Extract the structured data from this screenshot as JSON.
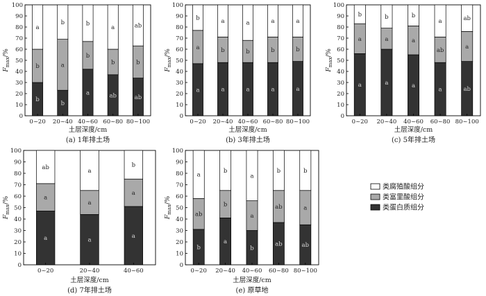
{
  "legend": [
    {
      "key": "humic",
      "label": "类腐殖酸组分",
      "color": "#ffffff"
    },
    {
      "key": "fulvic",
      "label": "类富里酸组分",
      "color": "#a9a9a9"
    },
    {
      "key": "protein",
      "label": "类蛋白质组分",
      "color": "#333333"
    }
  ],
  "chart_data": [
    {
      "type": "bar",
      "stacked": true,
      "caption": "(a)  1年排土场",
      "xlabel": "土层深度/cm",
      "ylabel_main": "F",
      "ylabel_sub": "max",
      "ylabel_unit": "/%",
      "ylim": [
        0,
        100
      ],
      "yticks": [
        0,
        10,
        20,
        30,
        40,
        50,
        60,
        70,
        80,
        90,
        100
      ],
      "categories": [
        "0~20",
        "20~40",
        "40~60",
        "60~80",
        "80~100"
      ],
      "series": [
        {
          "key": "protein",
          "values": [
            30,
            23,
            42,
            37,
            34
          ],
          "labels": [
            "b",
            "b",
            "a",
            "ab",
            "ab"
          ]
        },
        {
          "key": "fulvic",
          "values": [
            30,
            46,
            25,
            23,
            29
          ],
          "labels": [
            "b",
            "a",
            "b",
            "b",
            "b"
          ]
        },
        {
          "key": "humic",
          "values": [
            40,
            31,
            33,
            40,
            37
          ],
          "labels": [
            "a",
            "b",
            "b",
            "a",
            "ab"
          ]
        }
      ]
    },
    {
      "type": "bar",
      "stacked": true,
      "caption": "(b)  3年排土场",
      "xlabel": "土层深度/cm",
      "ylabel_main": "F",
      "ylabel_sub": "max",
      "ylabel_unit": "/%",
      "ylim": [
        0,
        100
      ],
      "yticks": [
        0,
        10,
        20,
        30,
        40,
        50,
        60,
        70,
        80,
        90,
        100
      ],
      "categories": [
        "0~20",
        "20~40",
        "40~60",
        "60~80",
        "80~100"
      ],
      "series": [
        {
          "key": "protein",
          "values": [
            47,
            48,
            48,
            48,
            49
          ],
          "labels": [
            "a",
            "a",
            "a",
            "a",
            "a"
          ]
        },
        {
          "key": "fulvic",
          "values": [
            30,
            23,
            20,
            23,
            22
          ],
          "labels": [
            "a",
            "b",
            "b",
            "b",
            "b"
          ]
        },
        {
          "key": "humic",
          "values": [
            23,
            29,
            32,
            29,
            29
          ],
          "labels": [
            "b",
            "a",
            "a",
            "a",
            "a"
          ]
        }
      ]
    },
    {
      "type": "bar",
      "stacked": true,
      "caption": "(c)  5年排土场",
      "xlabel": "土层深度/cm",
      "ylabel_main": "F",
      "ylabel_sub": "max",
      "ylabel_unit": "/%",
      "ylim": [
        0,
        100
      ],
      "yticks": [
        0,
        10,
        20,
        30,
        40,
        50,
        60,
        70,
        80,
        90,
        100
      ],
      "categories": [
        "0~20",
        "20~40",
        "40~60",
        "60~80",
        "80~100"
      ],
      "series": [
        {
          "key": "protein",
          "values": [
            56,
            60,
            55,
            48,
            49
          ],
          "labels": [
            "a",
            "a",
            "a",
            "a",
            "ab"
          ]
        },
        {
          "key": "fulvic",
          "values": [
            27,
            19,
            26,
            23,
            27
          ],
          "labels": [
            "a",
            "a",
            "a",
            "ab",
            "a"
          ]
        },
        {
          "key": "humic",
          "values": [
            17,
            21,
            19,
            29,
            24
          ],
          "labels": [
            "b",
            "b",
            "b",
            "a",
            "ab"
          ]
        }
      ]
    },
    {
      "type": "bar",
      "stacked": true,
      "caption": "(d)  7年排土场",
      "xlabel": "土层深度/cm",
      "ylabel_main": "F",
      "ylabel_sub": "max",
      "ylabel_unit": "/%",
      "ylim": [
        0,
        100
      ],
      "yticks": [
        0,
        10,
        20,
        30,
        40,
        50,
        60,
        70,
        80,
        90,
        100
      ],
      "categories": [
        "0~20",
        "20~40",
        "40~60"
      ],
      "series": [
        {
          "key": "protein",
          "values": [
            47,
            44,
            51
          ],
          "labels": [
            "a",
            "a",
            "a"
          ]
        },
        {
          "key": "fulvic",
          "values": [
            24,
            21,
            24
          ],
          "labels": [
            "a",
            "a",
            "a"
          ]
        },
        {
          "key": "humic",
          "values": [
            29,
            35,
            25
          ],
          "labels": [
            "ab",
            "a",
            "b"
          ]
        }
      ]
    },
    {
      "type": "bar",
      "stacked": true,
      "caption": "(e)  原草地",
      "xlabel": "土层深度/cm",
      "ylabel_main": "F",
      "ylabel_sub": "max",
      "ylabel_unit": "/%",
      "ylim": [
        0,
        100
      ],
      "yticks": [
        0,
        10,
        20,
        30,
        40,
        50,
        60,
        70,
        80,
        90,
        100
      ],
      "categories": [
        "0~20",
        "20~40",
        "40~60",
        "60~80",
        "80~100"
      ],
      "series": [
        {
          "key": "protein",
          "values": [
            31,
            41,
            30,
            37,
            35
          ],
          "labels": [
            "b",
            "a",
            "b",
            "ab",
            "ab"
          ]
        },
        {
          "key": "fulvic",
          "values": [
            27,
            24,
            26,
            28,
            30
          ],
          "labels": [
            "ab",
            "b",
            "a",
            "ab",
            "a"
          ]
        },
        {
          "key": "humic",
          "values": [
            42,
            35,
            44,
            35,
            35
          ],
          "labels": [
            "a",
            "b",
            "a",
            "b",
            "b"
          ]
        }
      ]
    }
  ]
}
